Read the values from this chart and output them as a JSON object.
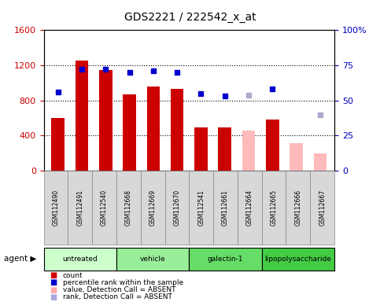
{
  "title": "GDS2221 / 222542_x_at",
  "samples": [
    "GSM112490",
    "GSM112491",
    "GSM112540",
    "GSM112668",
    "GSM112669",
    "GSM112670",
    "GSM112541",
    "GSM112661",
    "GSM112664",
    "GSM112665",
    "GSM112666",
    "GSM112667"
  ],
  "bar_values": [
    600,
    1250,
    1150,
    870,
    960,
    930,
    490,
    490,
    0,
    580,
    0,
    0
  ],
  "absent_bar_values": [
    0,
    0,
    0,
    0,
    0,
    0,
    0,
    0,
    460,
    0,
    310,
    200
  ],
  "rank_dots": [
    56,
    72,
    72,
    70,
    71,
    70,
    55,
    53,
    0,
    58,
    0,
    0
  ],
  "rank_dot_absent": [
    0,
    0,
    0,
    0,
    0,
    0,
    0,
    0,
    54,
    0,
    0,
    40
  ],
  "ylim_left": [
    0,
    1600
  ],
  "ylim_right": [
    0,
    100
  ],
  "yticks_left": [
    0,
    400,
    800,
    1200,
    1600
  ],
  "yticks_right": [
    0,
    25,
    50,
    75,
    100
  ],
  "yticklabels_right": [
    "0",
    "25",
    "50",
    "75",
    "100%"
  ],
  "group_labels": [
    "untreated",
    "vehicle",
    "galectin-1",
    "lipopolysaccharide"
  ],
  "group_colors": [
    "#ccffcc",
    "#99ee99",
    "#66dd66",
    "#44cc44"
  ],
  "group_ranges": [
    [
      0,
      3
    ],
    [
      3,
      6
    ],
    [
      6,
      9
    ],
    [
      9,
      12
    ]
  ],
  "legend_colors": [
    "#cc0000",
    "#0000cc",
    "#ffaaaa",
    "#aaaadd"
  ],
  "legend_labels": [
    "count",
    "percentile rank within the sample",
    "value, Detection Call = ABSENT",
    "rank, Detection Call = ABSENT"
  ],
  "left_tick_color": "#cc0000",
  "right_tick_color": "#0000bb",
  "bar_color_present": "#cc0000",
  "bar_color_absent": "#ffbbbb",
  "dot_color_present": "#0000cc",
  "dot_color_absent": "#aaaacc"
}
